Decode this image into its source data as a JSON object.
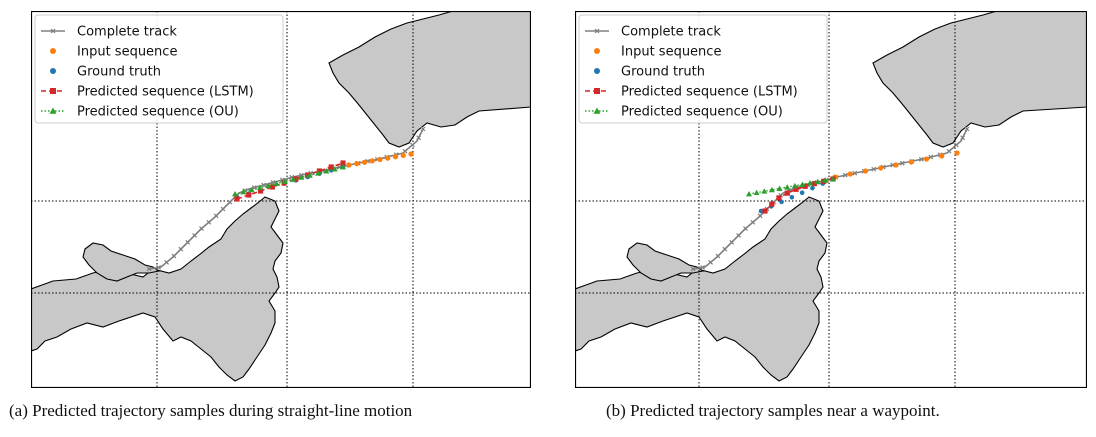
{
  "panels": [
    {
      "id": "a",
      "caption": "(a) Predicted trajectory samples during straight-line motion",
      "legend": [
        "Complete track",
        "Input sequence",
        "Ground truth",
        "Predicted sequence (LSTM)",
        "Predicted sequence (OU)"
      ],
      "scenario": "straight-line"
    },
    {
      "id": "b",
      "caption": "(b) Predicted trajectory samples near a waypoint.",
      "legend": [
        "Complete track",
        "Input sequence",
        "Ground truth",
        "Predicted sequence (LSTM)",
        "Predicted sequence (OU)"
      ],
      "scenario": "waypoint"
    }
  ],
  "colors": {
    "land": "#c8c8c8",
    "track": "#808080",
    "input": "#ff7f0e",
    "ground_truth": "#1f77b4",
    "lstm": "#d62728",
    "ou": "#2ca02c"
  },
  "icons": [
    "cross-marker-icon",
    "dot-marker-icon",
    "square-marker-icon",
    "triangle-marker-icon"
  ]
}
